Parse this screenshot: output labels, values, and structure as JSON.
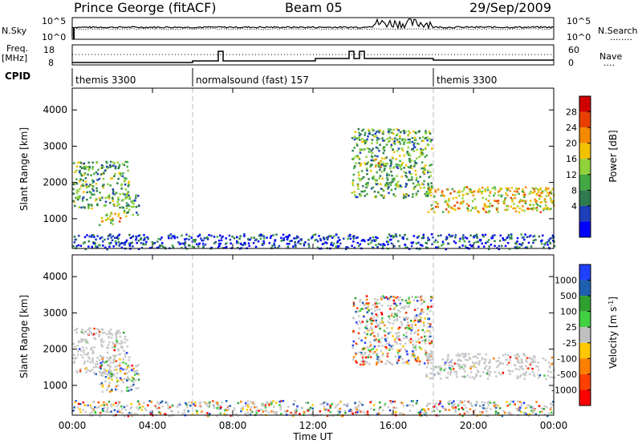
{
  "header": {
    "station": "Prince George (fitACF)",
    "beam": "Beam 05",
    "date": "29/Sep/2009"
  },
  "noise_panel": {
    "left_label": "N.Sky",
    "right_label": "N.Search",
    "right_dots": "........",
    "left_ticks": [
      "10^5",
      "10^0"
    ],
    "right_ticks": [
      "10^5",
      "10^0"
    ]
  },
  "freq_panel": {
    "left_label_top": "Freq.",
    "left_label_unit": "[MHz]",
    "right_label": "Nave",
    "right_dots": "....",
    "left_ticks": [
      "18",
      "8"
    ],
    "right_ticks": [
      "60",
      "0"
    ]
  },
  "cpid": {
    "label": "CPID",
    "segments": [
      {
        "name": "themis 3300",
        "start_hour": 0
      },
      {
        "name": "normalsound (fast) 157",
        "start_hour": 6
      },
      {
        "name": "themis 3300",
        "start_hour": 18
      }
    ]
  },
  "chart_data": [
    {
      "type": "heatmap",
      "title": "",
      "ylabel": "Slant Range [km]",
      "xlabel": "",
      "xlim": [
        0,
        24
      ],
      "ylim": [
        180,
        4600
      ],
      "yticks": [
        1000,
        2000,
        3000,
        4000
      ],
      "colorbar": {
        "label": "Power [dB]",
        "ticks": [
          "28",
          "24",
          "20",
          "16",
          "12",
          "8",
          "4"
        ],
        "colors": [
          "#0000ff",
          "#1d3fb8",
          "#2f7a4e",
          "#41a844",
          "#8fd23a",
          "#f2c200",
          "#f58a00",
          "#e84000",
          "#d00000"
        ]
      },
      "regions": [
        {
          "t": [
            0.0,
            2.8
          ],
          "r": [
            1300,
            2600
          ],
          "level": "mid"
        },
        {
          "t": [
            1.3,
            2.4
          ],
          "r": [
            850,
            1200
          ],
          "level": "high"
        },
        {
          "t": [
            2.5,
            3.3
          ],
          "r": [
            1050,
            1700
          ],
          "level": "mid"
        },
        {
          "t": [
            13.9,
            17.9
          ],
          "r": [
            1600,
            3500
          ],
          "level": "mid"
        },
        {
          "t": [
            15.0,
            15.4
          ],
          "r": [
            2450,
            2800
          ],
          "level": "high"
        },
        {
          "t": [
            17.6,
            24.0
          ],
          "r": [
            1200,
            1900
          ],
          "level": "high"
        },
        {
          "t": [
            0.0,
            24.0
          ],
          "r": [
            180,
            600
          ],
          "level": "low"
        }
      ]
    },
    {
      "type": "heatmap",
      "title": "",
      "ylabel": "Slant Range [km]",
      "xlabel": "Time UT",
      "xlim": [
        0,
        24
      ],
      "ylim": [
        180,
        4600
      ],
      "yticks": [
        1000,
        2000,
        3000,
        4000
      ],
      "xticks": [
        "00:00",
        "04:00",
        "08:00",
        "12:00",
        "16:00",
        "20:00",
        "00:00"
      ],
      "colorbar": {
        "label": "Velocity [m s",
        "label_sup": "-1",
        "label_close": "]",
        "ticks": [
          "1000",
          "500",
          "100",
          "25",
          "-25",
          "-100",
          "-500",
          "-1000"
        ],
        "colors": [
          "#ff0000",
          "#ff4000",
          "#ff8000",
          "#ffc800",
          "#c0c0c0",
          "#40d040",
          "#30a030",
          "#1f5fb0",
          "#2040ff"
        ]
      },
      "regions": [
        {
          "t": [
            0.0,
            2.8
          ],
          "r": [
            1300,
            2600
          ],
          "level": "ground"
        },
        {
          "t": [
            1.3,
            3.3
          ],
          "r": [
            850,
            1700
          ],
          "level": "mixed"
        },
        {
          "t": [
            13.9,
            17.9
          ],
          "r": [
            1600,
            3500
          ],
          "level": "mixed"
        },
        {
          "t": [
            17.6,
            24.0
          ],
          "r": [
            1200,
            1900
          ],
          "level": "ground"
        },
        {
          "t": [
            0.0,
            24.0
          ],
          "r": [
            180,
            600
          ],
          "level": "mixed"
        }
      ]
    }
  ]
}
